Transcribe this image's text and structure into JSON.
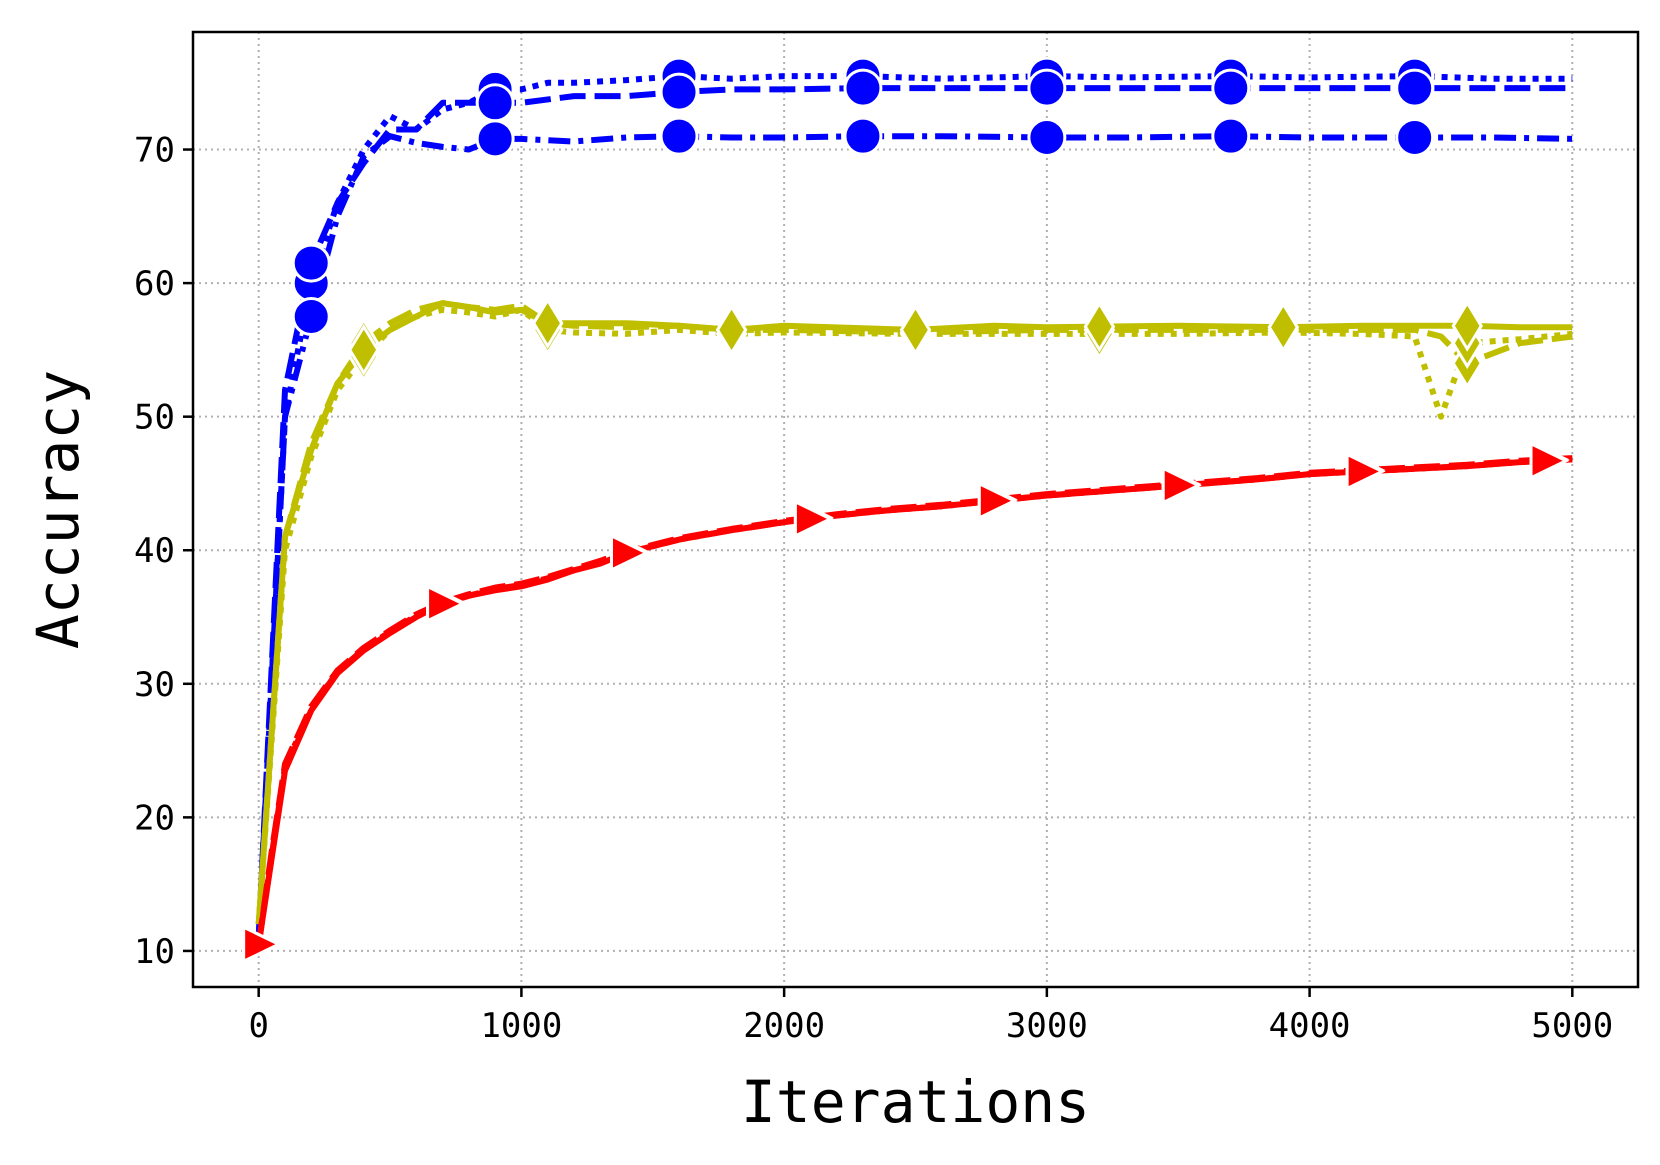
{
  "chart_data": {
    "type": "line",
    "title": "",
    "xlabel": "Iterations",
    "ylabel": "Accuracy",
    "xlim": [
      -250,
      5250
    ],
    "ylim": [
      7.3,
      78.8
    ],
    "xticks": [
      0,
      1000,
      2000,
      3000,
      4000,
      5000
    ],
    "yticks": [
      10,
      20,
      30,
      40,
      50,
      60,
      70
    ],
    "grid": true,
    "legend": "none",
    "colors": {
      "blue": "#0000ff",
      "olive": "#bfbf00",
      "red": "#ff0000"
    },
    "series": [
      {
        "color": "#0000ff",
        "dash": "dotted",
        "marker": "circle",
        "x": [
          0,
          100,
          200,
          300,
          400,
          500,
          600,
          700,
          800,
          900,
          1000,
          1100,
          1200,
          1400,
          1600,
          1800,
          2000,
          2300,
          2600,
          3000,
          3300,
          3700,
          4000,
          4400,
          4700,
          5000
        ],
        "y": [
          11,
          50,
          60,
          66,
          70,
          72.5,
          71.5,
          73,
          73.5,
          74.5,
          74.5,
          75,
          75,
          75.2,
          75.5,
          75.3,
          75.5,
          75.5,
          75.3,
          75.5,
          75.4,
          75.5,
          75.4,
          75.5,
          75.3,
          75.3
        ],
        "markers_x": [
          200,
          900,
          1600,
          2300,
          3000,
          3700,
          4400
        ]
      },
      {
        "color": "#0000ff",
        "dash": "dashed",
        "marker": "circle",
        "x": [
          0,
          100,
          200,
          300,
          400,
          500,
          600,
          700,
          800,
          900,
          1000,
          1200,
          1400,
          1600,
          1800,
          2000,
          2300,
          2600,
          3000,
          3300,
          3700,
          4000,
          4400,
          4700,
          5000
        ],
        "y": [
          11,
          52,
          61.5,
          66,
          69,
          71.5,
          71.5,
          73.5,
          73.5,
          73.5,
          73.5,
          74,
          74,
          74.3,
          74.5,
          74.5,
          74.6,
          74.6,
          74.6,
          74.6,
          74.6,
          74.6,
          74.6,
          74.6,
          74.6
        ],
        "markers_x": [
          200,
          900,
          1600,
          2300,
          3000,
          3700,
          4400
        ]
      },
      {
        "color": "#0000ff",
        "dash": "dashdot",
        "marker": "circle",
        "x": [
          0,
          100,
          200,
          300,
          400,
          500,
          600,
          700,
          800,
          900,
          1000,
          1200,
          1400,
          1600,
          1800,
          2000,
          2300,
          2600,
          3000,
          3300,
          3700,
          4000,
          4400,
          4700,
          5000
        ],
        "y": [
          11,
          50,
          57.5,
          65,
          69.5,
          71,
          70.5,
          70.2,
          70,
          70.8,
          70.8,
          70.6,
          70.9,
          71,
          70.9,
          70.9,
          71,
          71,
          70.9,
          70.9,
          71,
          70.9,
          70.9,
          70.9,
          70.8
        ],
        "markers_x": [
          200,
          900,
          1600,
          2300,
          3000,
          3700,
          4400
        ]
      },
      {
        "color": "#bfbf00",
        "dash": "dashed",
        "marker": "diamond",
        "x": [
          0,
          100,
          200,
          300,
          400,
          500,
          600,
          700,
          800,
          900,
          1000,
          1100,
          1200,
          1400,
          1600,
          1800,
          2000,
          2500,
          3000,
          3500,
          3900,
          4200,
          4400,
          4500,
          4600,
          4800,
          5000
        ],
        "y": [
          12,
          41,
          48,
          52.5,
          55.5,
          57,
          58,
          58.5,
          58.2,
          58,
          58.3,
          57,
          56.8,
          56.7,
          56.8,
          56.5,
          56.5,
          56.3,
          56.5,
          56.5,
          56.5,
          56.5,
          56.5,
          56,
          54,
          55.5,
          56
        ],
        "markers_x": [
          400,
          1100,
          1800,
          2500,
          3200,
          3900,
          4600
        ]
      },
      {
        "color": "#bfbf00",
        "dash": "dotted",
        "marker": "diamond",
        "x": [
          0,
          100,
          200,
          300,
          400,
          500,
          600,
          700,
          800,
          900,
          1000,
          1100,
          1200,
          1400,
          1600,
          1800,
          2000,
          2500,
          3000,
          3500,
          3900,
          4200,
          4400,
          4450,
          4500,
          4600,
          4800,
          5000
        ],
        "y": [
          12,
          40,
          47,
          52,
          54.5,
          56.5,
          57.5,
          58,
          57.8,
          57.5,
          58,
          56.5,
          56.3,
          56.2,
          56.5,
          56.2,
          56.3,
          56.2,
          56.2,
          56.2,
          56.3,
          56.2,
          56,
          53,
          50,
          55.5,
          55.8,
          56.2
        ],
        "markers_x": [
          400,
          1100,
          1800,
          2500,
          3200,
          3900,
          4600
        ]
      },
      {
        "color": "#bfbf00",
        "dash": "solid",
        "marker": "diamond",
        "x": [
          0,
          100,
          200,
          300,
          400,
          500,
          600,
          700,
          800,
          900,
          1000,
          1100,
          1200,
          1400,
          1600,
          1800,
          2000,
          2500,
          2800,
          3000,
          3500,
          3900,
          4200,
          4400,
          4600,
          4800,
          5000
        ],
        "y": [
          12,
          41,
          47.5,
          52.5,
          55,
          56.5,
          57.5,
          58.5,
          58.2,
          57.8,
          58,
          57,
          57,
          57,
          56.8,
          56.5,
          56.8,
          56.5,
          56.8,
          56.7,
          56.8,
          56.7,
          56.8,
          56.8,
          56.8,
          56.7,
          56.7
        ],
        "markers_x": [
          400,
          1100,
          1800,
          2500,
          3200,
          3900,
          4600
        ]
      },
      {
        "color": "#ff0000",
        "dash": "solid",
        "marker": "triangle-right",
        "x": [
          0,
          50,
          100,
          200,
          300,
          400,
          500,
          600,
          700,
          800,
          900,
          1000,
          1100,
          1200,
          1300,
          1400,
          1500,
          1600,
          1800,
          2000,
          2200,
          2400,
          2600,
          2800,
          3000,
          3200,
          3400,
          3600,
          3800,
          4000,
          4200,
          4400,
          4600,
          4800,
          5000
        ],
        "y": [
          10.5,
          17,
          23.5,
          28,
          30.8,
          32.5,
          33.8,
          35,
          36,
          36.6,
          37,
          37.3,
          37.8,
          38.5,
          39,
          39.8,
          40.3,
          40.8,
          41.5,
          42.1,
          42.6,
          43,
          43.3,
          43.7,
          44.1,
          44.4,
          44.7,
          45,
          45.3,
          45.7,
          45.9,
          46.1,
          46.3,
          46.6,
          46.8
        ],
        "markers_x": [
          0,
          700,
          1400,
          2100,
          2800,
          3500,
          4200,
          4900
        ]
      },
      {
        "color": "#ff0000",
        "dash": "dashed",
        "marker": "triangle-right",
        "x": [
          0,
          50,
          100,
          200,
          300,
          400,
          500,
          600,
          700,
          800,
          900,
          1000,
          1100,
          1200,
          1300,
          1400,
          1500,
          1600,
          1800,
          2000,
          2200,
          2400,
          2600,
          2800,
          3000,
          3200,
          3400,
          3600,
          3800,
          4000,
          4200,
          4400,
          4600,
          4800,
          5000
        ],
        "y": [
          10.5,
          17.5,
          24,
          28.3,
          31,
          32.7,
          34,
          35.2,
          36.1,
          36.7,
          37.2,
          37.5,
          38,
          38.6,
          39.2,
          39.9,
          40.4,
          40.9,
          41.6,
          42.2,
          42.7,
          43.1,
          43.4,
          43.8,
          44.2,
          44.5,
          44.8,
          45.1,
          45.4,
          45.8,
          46,
          46.2,
          46.4,
          46.7,
          46.9
        ],
        "markers_x": [
          0,
          700,
          1400,
          2100,
          2800,
          3500,
          4200,
          4900
        ]
      },
      {
        "color": "#ff0000",
        "dash": "dashdot",
        "marker": "triangle-right",
        "x": [
          0,
          50,
          100,
          200,
          300,
          400,
          500,
          600,
          700,
          800,
          900,
          1000,
          1100,
          1200,
          1300,
          1400,
          1500,
          1600,
          1800,
          2000,
          2200,
          2400,
          2600,
          2800,
          3000,
          3200,
          3400,
          3600,
          3800,
          4000,
          4200,
          4400,
          4600,
          4800,
          5000
        ],
        "y": [
          10.5,
          17.2,
          23.8,
          28.1,
          30.9,
          32.6,
          33.9,
          35.1,
          36,
          36.6,
          37.1,
          37.4,
          37.9,
          38.5,
          39.1,
          39.8,
          40.3,
          40.8,
          41.5,
          42.1,
          42.6,
          43,
          43.3,
          43.7,
          44.1,
          44.4,
          44.7,
          45,
          45.3,
          45.7,
          45.9,
          46.1,
          46.3,
          46.6,
          46.8
        ],
        "markers_x": [
          0,
          700,
          1400,
          2100,
          2800,
          3500,
          4200,
          4900
        ]
      }
    ]
  }
}
